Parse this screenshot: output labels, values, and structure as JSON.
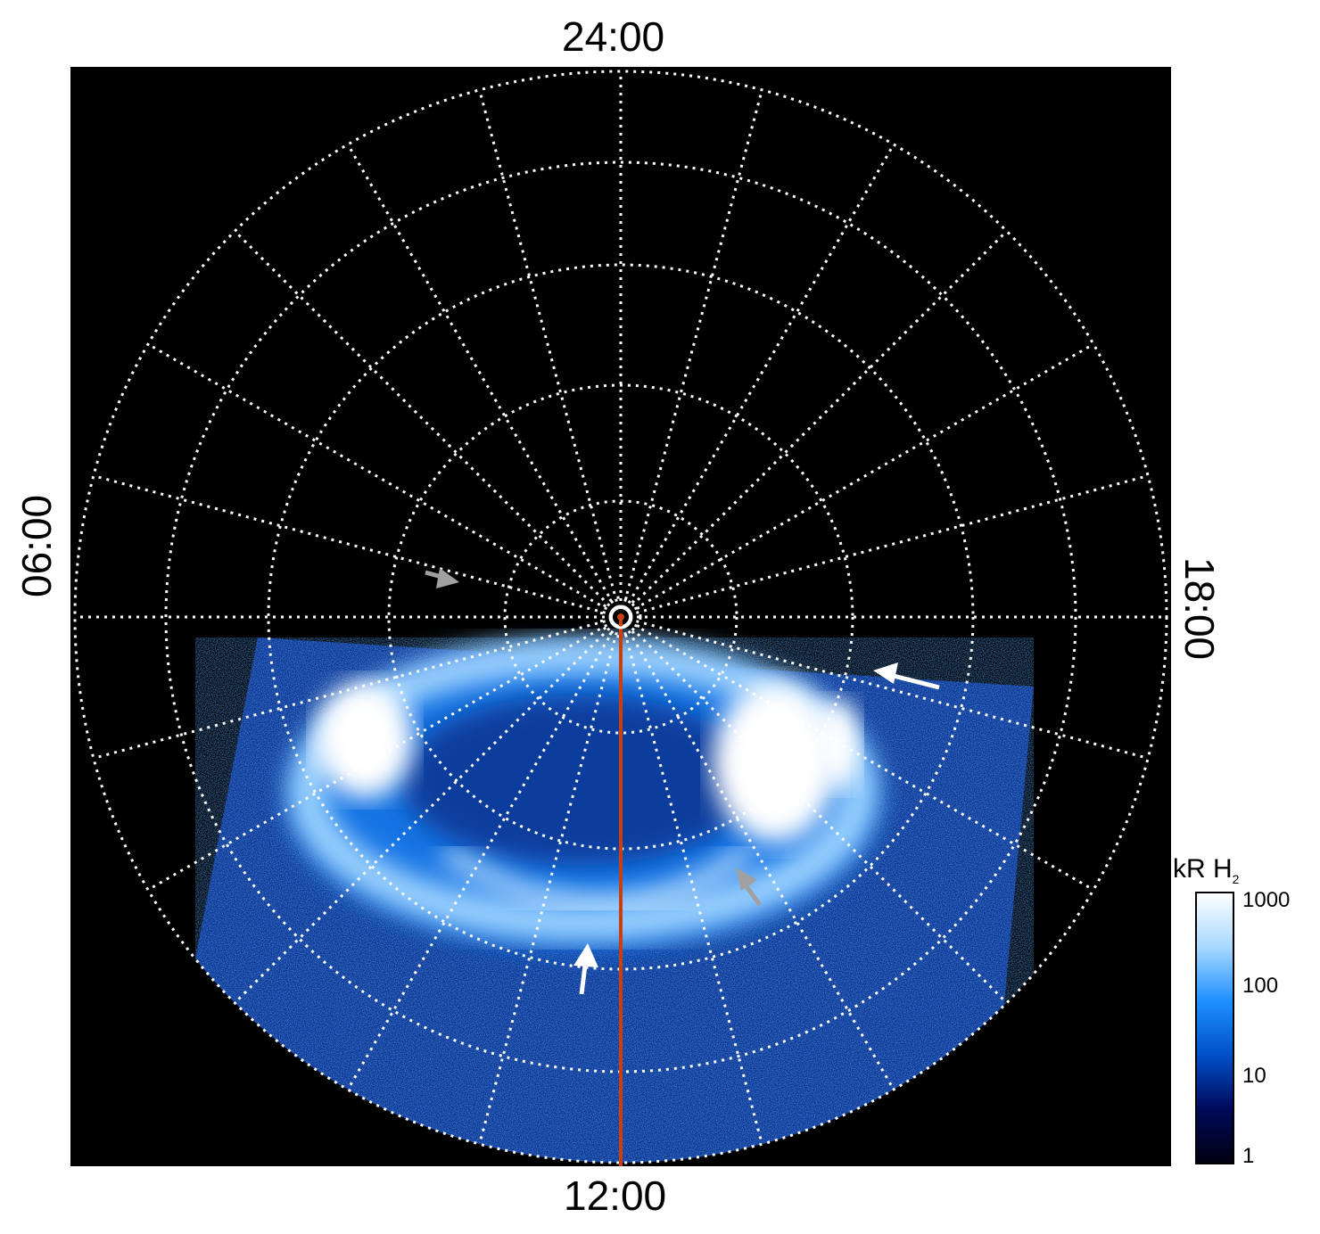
{
  "labels": {
    "top": "24:00",
    "bottom": "12:00",
    "left": "06:00",
    "right": "18:00"
  },
  "colorbar": {
    "title_main": "kR H",
    "title_sub": "2",
    "ticks": [
      "1000",
      "100",
      "10",
      "1"
    ],
    "colors": [
      "#000010",
      "#000a5a",
      "#0050c8",
      "#1e90ff",
      "#a8d8ff",
      "#ffffff"
    ]
  },
  "colors": {
    "grid": "#ffffff",
    "meridian_line": "#c84010",
    "arrow_white": "#ffffff",
    "arrow_gray": "#a0a0a0"
  }
}
